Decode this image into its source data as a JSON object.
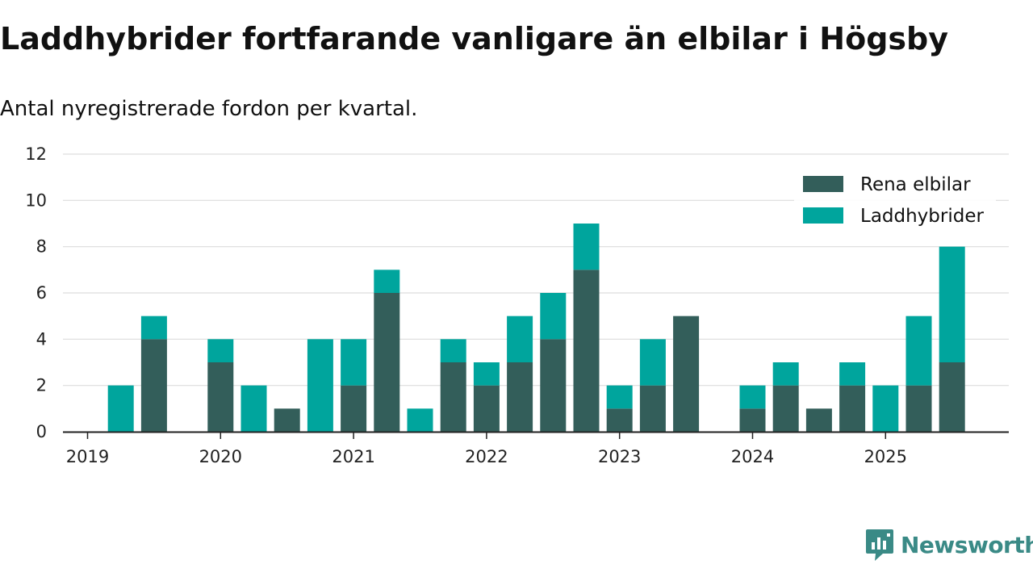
{
  "header": {
    "title": "Laddhybrider fortfarande vanligare än elbilar i Högsby",
    "subtitle": "Antal nyregistrerade fordon per kvartal."
  },
  "brand": {
    "name": "Newsworthy",
    "color": "#3a8a86"
  },
  "chart_data": {
    "type": "bar",
    "stacked": true,
    "title": "Laddhybrider fortfarande vanligare än elbilar i Högsby",
    "subtitle": "Antal nyregistrerade fordon per kvartal.",
    "xlabel": "",
    "ylabel": "",
    "categories": [
      "2019 Q1",
      "2019 Q2",
      "2019 Q3",
      "2019 Q4",
      "2020 Q1",
      "2020 Q2",
      "2020 Q3",
      "2020 Q4",
      "2021 Q1",
      "2021 Q2",
      "2021 Q3",
      "2021 Q4",
      "2022 Q1",
      "2022 Q2",
      "2022 Q3",
      "2022 Q4",
      "2023 Q1",
      "2023 Q2",
      "2023 Q3",
      "2023 Q4",
      "2024 Q1",
      "2024 Q2",
      "2024 Q3",
      "2024 Q4",
      "2025 Q1",
      "2025 Q2",
      "2025 Q3"
    ],
    "year_ticks": [
      "2019",
      "2020",
      "2021",
      "2022",
      "2023",
      "2024",
      "2025"
    ],
    "y_ticks": [
      "0",
      "2",
      "4",
      "6",
      "8",
      "10",
      "12"
    ],
    "ylim": [
      0,
      12
    ],
    "grid": true,
    "legend_position": "top-right",
    "series": [
      {
        "name": "Rena elbilar",
        "color": "#335e5a",
        "values": [
          0,
          0,
          4,
          0,
          3,
          0,
          1,
          0,
          2,
          6,
          0,
          3,
          2,
          3,
          4,
          7,
          1,
          2,
          5,
          0,
          1,
          2,
          1,
          2,
          0,
          2,
          3
        ]
      },
      {
        "name": "Laddhybrider",
        "color": "#00a59d",
        "values": [
          0,
          2,
          1,
          0,
          1,
          2,
          0,
          4,
          2,
          1,
          1,
          1,
          1,
          2,
          2,
          2,
          1,
          2,
          0,
          0,
          1,
          1,
          0,
          1,
          2,
          3,
          5
        ]
      }
    ]
  }
}
